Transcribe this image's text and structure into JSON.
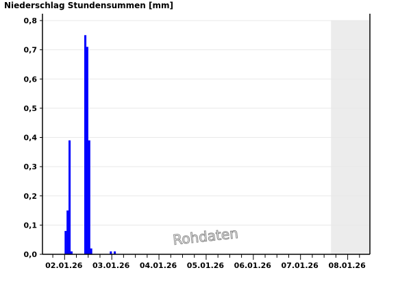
{
  "title": "Niederschlag Stundensummen [mm]",
  "watermark": "Rohdaten",
  "chart_data": {
    "type": "bar",
    "title": "Niederschlag Stundensummen [mm]",
    "xlabel": "",
    "ylabel": "",
    "ylim": [
      0,
      0.8
    ],
    "yticks": [
      "0,0",
      "0,1",
      "0,2",
      "0,3",
      "0,4",
      "0,5",
      "0,6",
      "0,7",
      "0,8"
    ],
    "xticks": [
      "02.01.26",
      "03.01.26",
      "04.01.26",
      "05.01.26",
      "06.01.26",
      "07.01.26",
      "08.01.26"
    ],
    "xlim": [
      "01.01.26 12:45",
      "08.01.26 11:00"
    ],
    "grid": true,
    "shaded_region": {
      "from": "07.01.26 15:30",
      "to": "08.01.26 11:00",
      "color": "#ececec"
    },
    "bar_color": "#0000ff",
    "data": [
      {
        "time": "02.01.26 00:00",
        "value": 0.08
      },
      {
        "time": "02.01.26 01:00",
        "value": 0.15
      },
      {
        "time": "02.01.26 02:00",
        "value": 0.39
      },
      {
        "time": "02.01.26 03:00",
        "value": 0.01
      },
      {
        "time": "02.01.26 10:00",
        "value": 0.75
      },
      {
        "time": "02.01.26 11:00",
        "value": 0.71
      },
      {
        "time": "02.01.26 12:00",
        "value": 0.39
      },
      {
        "time": "02.01.26 13:00",
        "value": 0.02
      },
      {
        "time": "02.01.26 23:00",
        "value": 0.01
      },
      {
        "time": "03.01.26 01:00",
        "value": 0.01
      }
    ]
  }
}
